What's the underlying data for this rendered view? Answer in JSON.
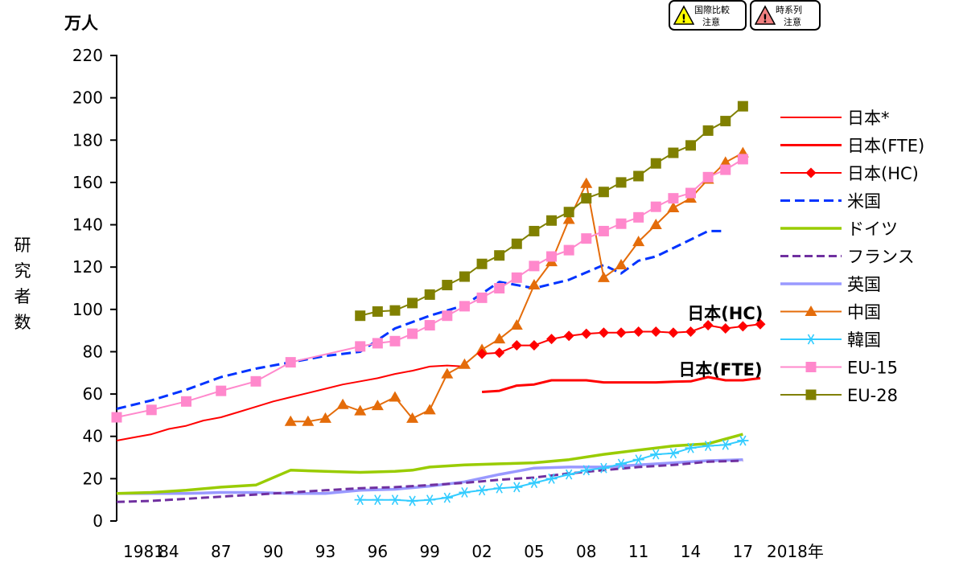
{
  "badges": [
    {
      "line1": "国際比較",
      "line2": "注意",
      "color": "#ffff00"
    },
    {
      "line1": "時系列",
      "line2": "注意",
      "color": "#f08080"
    }
  ],
  "chart_data": {
    "type": "line",
    "unit_label": "万人",
    "ylabel": "研究者数",
    "ylim": [
      0,
      220
    ],
    "yticks": [
      0,
      20,
      40,
      60,
      80,
      100,
      120,
      140,
      160,
      180,
      200,
      220
    ],
    "xlim": [
      1981,
      2018
    ],
    "xticks": [
      {
        "x": 1981,
        "label": "1981"
      },
      {
        "x": 1984,
        "label": "84"
      },
      {
        "x": 1987,
        "label": "87"
      },
      {
        "x": 1990,
        "label": "90"
      },
      {
        "x": 1993,
        "label": "93"
      },
      {
        "x": 1996,
        "label": "96"
      },
      {
        "x": 1999,
        "label": "99"
      },
      {
        "x": 2002,
        "label": "02"
      },
      {
        "x": 2005,
        "label": "05"
      },
      {
        "x": 2008,
        "label": "08"
      },
      {
        "x": 2011,
        "label": "11"
      },
      {
        "x": 2014,
        "label": "14"
      },
      {
        "x": 2017,
        "label": "17"
      },
      {
        "x": 2018,
        "label": "2018年"
      }
    ],
    "annotations": [
      {
        "text": "日本(HC)",
        "x": 2013.8,
        "y": 98
      },
      {
        "text": "日本(FTE)",
        "x": 2013.3,
        "y": 71.5
      }
    ],
    "series": [
      {
        "name": "日本*",
        "color": "#ff0000",
        "width": 2,
        "dash": "",
        "marker": "none",
        "x": [
          1981,
          1982,
          1983,
          1984,
          1985,
          1986,
          1987,
          1988,
          1989,
          1990,
          1991,
          1992,
          1993,
          1994,
          1995,
          1996,
          1997,
          1998,
          1999,
          2000,
          2001
        ],
        "y": [
          38,
          39.5,
          41,
          43.5,
          45,
          47.5,
          49,
          51.5,
          54,
          56.5,
          58.5,
          60.5,
          62.5,
          64.5,
          66,
          67.5,
          69.5,
          71,
          73,
          73.5,
          73
        ]
      },
      {
        "name": "日本(FTE)",
        "color": "#ff0000",
        "width": 3,
        "dash": "",
        "marker": "none",
        "x": [
          2002,
          2003,
          2004,
          2005,
          2006,
          2007,
          2008,
          2009,
          2010,
          2011,
          2012,
          2013,
          2014,
          2015,
          2016,
          2017,
          2018
        ],
        "y": [
          61,
          61.5,
          64,
          64.5,
          66.5,
          66.5,
          66.5,
          65.5,
          65.5,
          65.5,
          65.5,
          65.8,
          66,
          68,
          66.5,
          66.5,
          67.5
        ]
      },
      {
        "name": "日本(HC)",
        "color": "#ff0000",
        "width": 2,
        "dash": "",
        "marker": "diamond",
        "x": [
          2002,
          2003,
          2004,
          2005,
          2006,
          2007,
          2008,
          2009,
          2010,
          2011,
          2012,
          2013,
          2014,
          2015,
          2016,
          2017,
          2018
        ],
        "y": [
          79,
          79.5,
          83,
          83,
          86,
          87.5,
          88.5,
          89,
          89,
          89.5,
          89.5,
          89,
          89.5,
          92.5,
          91,
          92,
          93
        ]
      },
      {
        "name": "米国",
        "color": "#0033ff",
        "width": 3,
        "dash": "12 6",
        "marker": "none",
        "x": [
          1981,
          1983,
          1985,
          1987,
          1989,
          1991,
          1993,
          1995,
          1997,
          1999,
          2001,
          2003,
          2005,
          2007,
          2009,
          2010,
          2011,
          2012,
          2013,
          2014,
          2015,
          2016
        ],
        "y": [
          53,
          57,
          62,
          68,
          72,
          75,
          78,
          80,
          91,
          97,
          102,
          113,
          110,
          114,
          121,
          117,
          123,
          125,
          129,
          133,
          137,
          137
        ]
      },
      {
        "name": "ドイツ",
        "color": "#99cc00",
        "width": 3.5,
        "dash": "",
        "marker": "none",
        "x": [
          1981,
          1983,
          1985,
          1987,
          1989,
          1991,
          1993,
          1995,
          1997,
          1998,
          1999,
          2001,
          2003,
          2005,
          2007,
          2009,
          2011,
          2013,
          2015,
          2017
        ],
        "y": [
          13,
          13.5,
          14.5,
          16,
          17,
          24,
          23.5,
          23,
          23.5,
          24,
          25.5,
          26.5,
          27,
          27.5,
          29,
          31.5,
          33.5,
          35.5,
          36.5,
          41
        ]
      },
      {
        "name": "フランス",
        "color": "#7030a0",
        "width": 3,
        "dash": "10 5",
        "marker": "none",
        "x": [
          1981,
          1983,
          1985,
          1987,
          1989,
          1991,
          1993,
          1995,
          1997,
          1999,
          2001,
          2003,
          2005,
          2007,
          2009,
          2011,
          2013,
          2015,
          2017
        ],
        "y": [
          9,
          9.5,
          10.5,
          11.5,
          12.5,
          13.5,
          14.5,
          15.5,
          16,
          17,
          18,
          19.5,
          20.5,
          22.5,
          24,
          25.5,
          26.5,
          28,
          28.5
        ]
      },
      {
        "name": "英国",
        "color": "#9999ff",
        "width": 3.5,
        "dash": "",
        "marker": "none",
        "x": [
          1981,
          1983,
          1985,
          1987,
          1989,
          1991,
          1993,
          1995,
          1997,
          1999,
          2001,
          2003,
          2005,
          2007,
          2009,
          2011,
          2013,
          2015,
          2017
        ],
        "y": [
          13,
          13,
          13,
          13.5,
          13.5,
          13,
          13,
          14.5,
          15,
          16.5,
          18.5,
          22,
          25,
          25.5,
          25.5,
          26.5,
          27.5,
          28.5,
          29
        ]
      },
      {
        "name": "中国",
        "color": "#e46c0a",
        "width": 2,
        "dash": "",
        "marker": "triangle",
        "x": [
          1991,
          1992,
          1993,
          1994,
          1995,
          1996,
          1997,
          1998,
          1999,
          2000,
          2001,
          2002,
          2003,
          2004,
          2005,
          2006,
          2007,
          2008,
          2009,
          2010,
          2011,
          2012,
          2013,
          2014,
          2015,
          2016,
          2017
        ],
        "y": [
          47,
          47,
          48.5,
          55,
          52,
          54.5,
          58.5,
          48.5,
          52.5,
          69.5,
          74,
          81,
          86,
          92.5,
          111.5,
          122.5,
          142.5,
          159.5,
          115,
          121,
          132,
          140,
          148,
          152.5,
          161.5,
          169.5,
          174
        ]
      },
      {
        "name": "韓国",
        "color": "#33ccff",
        "width": 2,
        "dash": "",
        "marker": "asterisk",
        "x": [
          1995,
          1996,
          1997,
          1998,
          1999,
          2000,
          2001,
          2002,
          2003,
          2004,
          2005,
          2006,
          2007,
          2008,
          2009,
          2010,
          2011,
          2012,
          2013,
          2014,
          2015,
          2016,
          2017
        ],
        "y": [
          10,
          10,
          10,
          9.5,
          10,
          11,
          13.5,
          14.5,
          15.5,
          16,
          18,
          20,
          22,
          24,
          25,
          27,
          29,
          31.5,
          32,
          34.5,
          35.5,
          36,
          38
        ]
      },
      {
        "name": "EU-15",
        "color": "#ff88cc",
        "width": 2,
        "dash": "",
        "marker": "square",
        "x": [
          1981,
          1983,
          1985,
          1987,
          1989,
          1991,
          1995,
          1996,
          1997,
          1998,
          1999,
          2000,
          2001,
          2002,
          2003,
          2004,
          2005,
          2006,
          2007,
          2008,
          2009,
          2010,
          2011,
          2012,
          2013,
          2014,
          2015,
          2016,
          2017
        ],
        "y": [
          49,
          52.5,
          56.5,
          61.5,
          66,
          75,
          82.5,
          84,
          85,
          88.5,
          92.5,
          97,
          101.5,
          105.5,
          110,
          115,
          120.5,
          125,
          128,
          133.5,
          137,
          140.5,
          143.5,
          148.5,
          152.5,
          155,
          162.5,
          166,
          171
        ]
      },
      {
        "name": "EU-28",
        "color": "#808000",
        "width": 2,
        "dash": "",
        "marker": "square",
        "x": [
          1995,
          1996,
          1997,
          1998,
          1999,
          2000,
          2001,
          2002,
          2003,
          2004,
          2005,
          2006,
          2007,
          2008,
          2009,
          2010,
          2011,
          2012,
          2013,
          2014,
          2015,
          2016,
          2017
        ],
        "y": [
          97,
          99,
          99.5,
          103,
          107,
          111.5,
          115.5,
          121.5,
          125.5,
          131,
          137,
          142,
          146,
          152.5,
          155.5,
          160,
          163,
          169,
          174,
          177.5,
          184.5,
          189,
          196
        ]
      }
    ]
  }
}
